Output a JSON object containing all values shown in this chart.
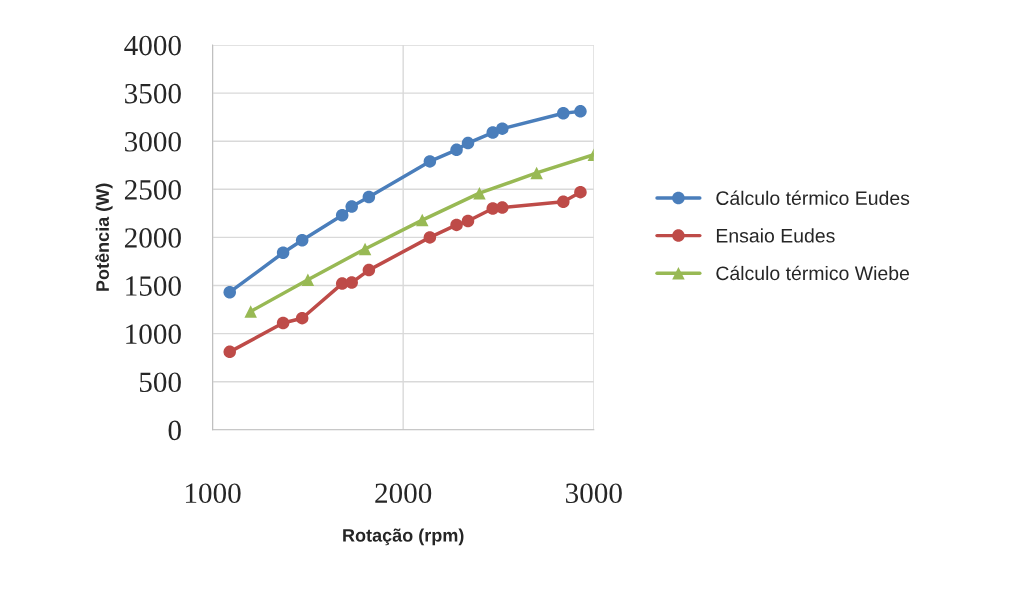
{
  "chart_data": {
    "type": "line",
    "xlabel": "Rotação (rpm)",
    "ylabel": "Potência (W)",
    "xlim": [
      1000,
      3000
    ],
    "xticks": [
      1000,
      2000,
      3000
    ],
    "ylim": [
      0,
      4000
    ],
    "yticks": [
      0,
      500,
      1000,
      1500,
      2000,
      2500,
      3000,
      3500,
      4000
    ],
    "grid": true,
    "legend": "right",
    "line_style": "solid",
    "series": [
      {
        "name": "Cálculo térmico Eudes",
        "color": "#4a7ebb",
        "marker": "circle",
        "x": [
          1090,
          1370,
          1470,
          1680,
          1730,
          1820,
          2140,
          2280,
          2340,
          2470,
          2520,
          2840,
          2930
        ],
        "values": [
          1430,
          1840,
          1970,
          2230,
          2320,
          2420,
          2790,
          2910,
          2980,
          3090,
          3130,
          3290,
          3310
        ]
      },
      {
        "name": "Ensaio Eudes",
        "color": "#be4b48",
        "marker": "circle",
        "x": [
          1090,
          1370,
          1470,
          1680,
          1730,
          1820,
          2140,
          2280,
          2340,
          2470,
          2520,
          2840,
          2930
        ],
        "values": [
          810,
          1110,
          1160,
          1520,
          1530,
          1660,
          2000,
          2130,
          2170,
          2300,
          2310,
          2370,
          2470
        ]
      },
      {
        "name": "Cálculo térmico Wiebe",
        "color": "#98b954",
        "marker": "triangle",
        "x": [
          1200,
          1500,
          1800,
          2100,
          2400,
          2700,
          3000
        ],
        "values": [
          1230,
          1560,
          1880,
          2180,
          2460,
          2670,
          2860
        ]
      }
    ]
  }
}
